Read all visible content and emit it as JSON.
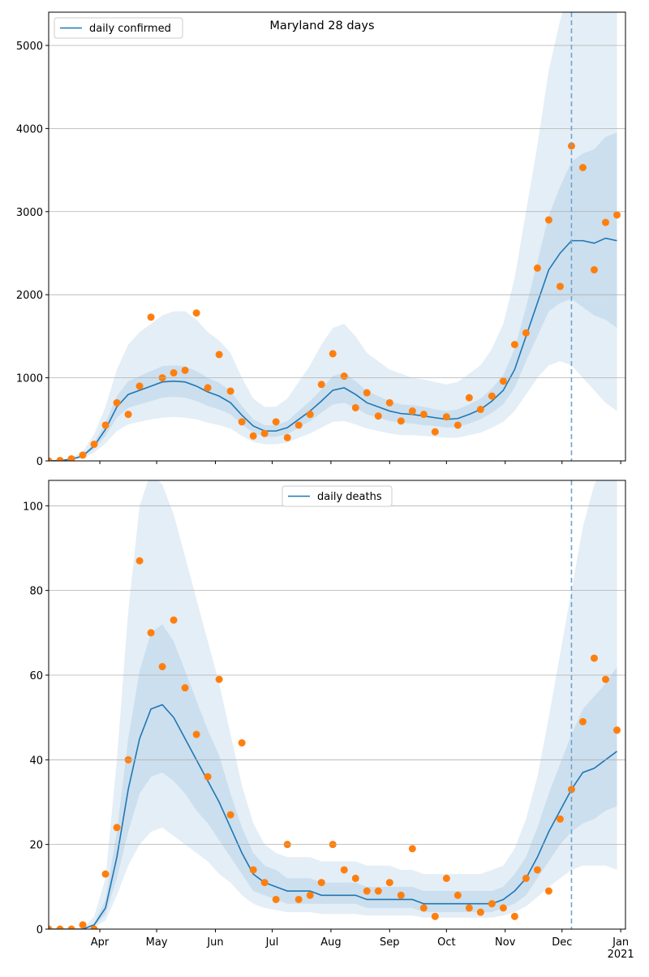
{
  "chart_data": [
    {
      "type": "line",
      "title": "Maryland 28 days",
      "legend": "upper left",
      "xlim": [
        65,
        369.5
      ],
      "xticks": [
        92,
        122,
        153,
        183,
        214,
        245,
        275,
        306,
        336,
        367
      ],
      "ylim": [
        0,
        5400
      ],
      "yticks": [
        0,
        1000,
        2000,
        3000,
        4000,
        5000
      ],
      "grid": true,
      "vline": 341,
      "vline_color": "#6fa3cf",
      "x": [
        65,
        71,
        77,
        83,
        89,
        95,
        101,
        107,
        113,
        119,
        125,
        131,
        137,
        143,
        149,
        155,
        161,
        167,
        173,
        179,
        185,
        191,
        197,
        203,
        209,
        215,
        221,
        227,
        233,
        239,
        245,
        251,
        257,
        263,
        269,
        275,
        281,
        287,
        293,
        299,
        305,
        311,
        317,
        323,
        329,
        335,
        341,
        347,
        353,
        359,
        365
      ],
      "series": [
        {
          "name": "daily confirmed",
          "color": "#1f77b4",
          "values": [
            0,
            5,
            20,
            60,
            180,
            380,
            650,
            800,
            850,
            900,
            950,
            960,
            950,
            900,
            830,
            780,
            700,
            550,
            420,
            360,
            360,
            400,
            500,
            600,
            720,
            850,
            880,
            800,
            700,
            650,
            600,
            570,
            560,
            540,
            520,
            500,
            510,
            560,
            620,
            720,
            850,
            1100,
            1500,
            1900,
            2300,
            2500,
            2650,
            2650,
            2620,
            2680,
            2650
          ]
        }
      ],
      "observed": {
        "color": "#ff7f0e",
        "values": [
          0,
          5,
          25,
          70,
          200,
          430,
          700,
          560,
          900,
          1730,
          1000,
          1060,
          1090,
          1780,
          880,
          1280,
          840,
          470,
          300,
          330,
          470,
          280,
          430,
          560,
          920,
          1290,
          1020,
          640,
          820,
          540,
          700,
          480,
          600,
          560,
          350,
          530,
          430,
          760,
          620,
          780,
          960,
          1400,
          1540,
          2320,
          2900,
          2100,
          3790,
          3530,
          2300,
          2870,
          2960
        ]
      },
      "band_color": "#1f77b4",
      "bands": [
        {
          "lower": [
            0,
            2,
            10,
            30,
            100,
            210,
            360,
            440,
            470,
            500,
            520,
            530,
            520,
            500,
            460,
            430,
            390,
            300,
            230,
            200,
            200,
            220,
            280,
            330,
            400,
            470,
            480,
            440,
            390,
            360,
            330,
            310,
            310,
            300,
            290,
            280,
            280,
            310,
            340,
            400,
            470,
            600,
            800,
            1000,
            1150,
            1200,
            1150,
            1000,
            850,
            700,
            600
          ],
          "upper": [
            0,
            10,
            40,
            110,
            320,
            650,
            1100,
            1400,
            1550,
            1650,
            1750,
            1800,
            1800,
            1700,
            1550,
            1450,
            1300,
            1000,
            750,
            650,
            650,
            750,
            950,
            1150,
            1400,
            1600,
            1650,
            1500,
            1300,
            1200,
            1100,
            1050,
            1000,
            980,
            950,
            920,
            950,
            1050,
            1150,
            1350,
            1650,
            2200,
            3000,
            3800,
            4700,
            5300,
            5800,
            6000,
            6000,
            5800,
            5500
          ]
        },
        {
          "lower": [
            0,
            4,
            16,
            48,
            144,
            300,
            520,
            640,
            680,
            720,
            760,
            770,
            760,
            720,
            660,
            620,
            560,
            440,
            340,
            290,
            290,
            320,
            400,
            480,
            580,
            680,
            700,
            640,
            560,
            520,
            480,
            460,
            450,
            430,
            420,
            400,
            410,
            450,
            500,
            580,
            680,
            880,
            1200,
            1500,
            1800,
            1900,
            1950,
            1850,
            1750,
            1700,
            1600
          ],
          "upper": [
            0,
            6,
            24,
            72,
            216,
            460,
            780,
            960,
            1020,
            1080,
            1140,
            1150,
            1140,
            1080,
            1000,
            940,
            840,
            660,
            500,
            430,
            430,
            480,
            600,
            720,
            860,
            1020,
            1060,
            960,
            840,
            780,
            720,
            680,
            670,
            650,
            620,
            600,
            620,
            680,
            750,
            870,
            1030,
            1350,
            1850,
            2400,
            2950,
            3300,
            3600,
            3700,
            3750,
            3900,
            3950
          ]
        }
      ]
    },
    {
      "type": "line",
      "legend": "upper center",
      "xlim": [
        65,
        369.5
      ],
      "xticks": [
        {
          "value": 92,
          "label": "Apr"
        },
        {
          "value": 122,
          "label": "May"
        },
        {
          "value": 153,
          "label": "Jun"
        },
        {
          "value": 183,
          "label": "Jul"
        },
        {
          "value": 214,
          "label": "Aug"
        },
        {
          "value": 245,
          "label": "Sep"
        },
        {
          "value": 275,
          "label": "Oct"
        },
        {
          "value": 306,
          "label": "Nov"
        },
        {
          "value": 336,
          "label": "Dec"
        },
        {
          "value": 367,
          "label": "Jan\n2021"
        }
      ],
      "ylim": [
        0,
        106
      ],
      "yticks": [
        0,
        20,
        40,
        60,
        80,
        100
      ],
      "grid": true,
      "vline": 341,
      "vline_color": "#6fa3cf",
      "x": [
        65,
        71,
        77,
        83,
        89,
        95,
        101,
        107,
        113,
        119,
        125,
        131,
        137,
        143,
        149,
        155,
        161,
        167,
        173,
        179,
        185,
        191,
        197,
        203,
        209,
        215,
        221,
        227,
        233,
        239,
        245,
        251,
        257,
        263,
        269,
        275,
        281,
        287,
        293,
        299,
        305,
        311,
        317,
        323,
        329,
        335,
        341,
        347,
        353,
        359,
        365
      ],
      "series": [
        {
          "name": "daily deaths",
          "color": "#1f77b4",
          "values": [
            0,
            0,
            0,
            0,
            1,
            5,
            17,
            33,
            45,
            52,
            53,
            50,
            45,
            40,
            35,
            30,
            24,
            18,
            13,
            11,
            10,
            9,
            9,
            9,
            8,
            8,
            8,
            8,
            7,
            7,
            7,
            7,
            7,
            6,
            6,
            6,
            6,
            6,
            6,
            6,
            7,
            9,
            12,
            17,
            23,
            28,
            33,
            37,
            38,
            40,
            42
          ]
        }
      ],
      "observed": {
        "color": "#ff7f0e",
        "values": [
          0,
          0,
          0,
          1,
          0,
          13,
          24,
          40,
          87,
          70,
          62,
          73,
          57,
          46,
          36,
          59,
          27,
          44,
          14,
          11,
          7,
          20,
          7,
          8,
          11,
          20,
          14,
          12,
          9,
          9,
          11,
          8,
          19,
          5,
          3,
          12,
          8,
          5,
          4,
          6,
          5,
          3,
          12,
          14,
          9,
          26,
          33,
          49,
          64,
          59,
          47
        ]
      },
      "band_color": "#1f77b4",
      "bands": [
        {
          "lower": [
            0,
            0,
            0,
            0,
            0.4,
            2,
            8,
            15,
            20,
            23,
            24,
            22,
            20,
            18,
            16,
            13,
            11,
            8,
            6,
            5,
            4.5,
            4,
            4,
            4,
            3.6,
            3.6,
            3.6,
            3.6,
            3.2,
            3.2,
            3.2,
            3.2,
            3.2,
            2.7,
            2.7,
            2.7,
            2.7,
            2.7,
            2.7,
            2.7,
            3.2,
            4,
            5.4,
            7.6,
            10,
            12,
            14,
            15,
            15,
            15,
            14
          ],
          "upper": [
            0,
            0,
            0,
            0,
            3,
            12,
            40,
            75,
            100,
            108,
            105,
            98,
            88,
            78,
            68,
            58,
            46,
            34,
            25,
            20,
            18,
            17,
            17,
            17,
            16,
            16,
            16,
            16,
            15,
            15,
            15,
            14,
            14,
            13,
            13,
            13,
            13,
            13,
            13,
            14,
            15,
            19,
            26,
            36,
            50,
            65,
            80,
            95,
            105,
            110,
            115
          ]
        },
        {
          "lower": [
            0,
            0,
            0,
            0,
            0.7,
            3.5,
            12,
            23,
            32,
            36,
            37,
            35,
            32,
            28,
            25,
            21,
            17,
            13,
            9,
            8,
            7,
            6,
            6,
            6,
            6,
            6,
            6,
            6,
            5,
            5,
            5,
            5,
            5,
            4,
            4,
            4,
            4,
            4,
            4,
            4,
            5,
            6,
            8,
            12,
            16,
            20,
            23,
            25,
            26,
            28,
            29
          ],
          "upper": [
            0,
            0,
            0,
            0,
            1.4,
            7,
            23,
            45,
            61,
            70,
            72,
            68,
            61,
            54,
            47,
            41,
            32,
            24,
            18,
            15,
            14,
            12,
            12,
            12,
            11,
            11,
            11,
            11,
            10,
            10,
            10,
            10,
            10,
            9,
            9,
            9,
            9,
            9,
            9,
            9,
            10,
            13,
            17,
            24,
            32,
            39,
            46,
            52,
            55,
            58,
            62
          ]
        }
      ]
    }
  ]
}
